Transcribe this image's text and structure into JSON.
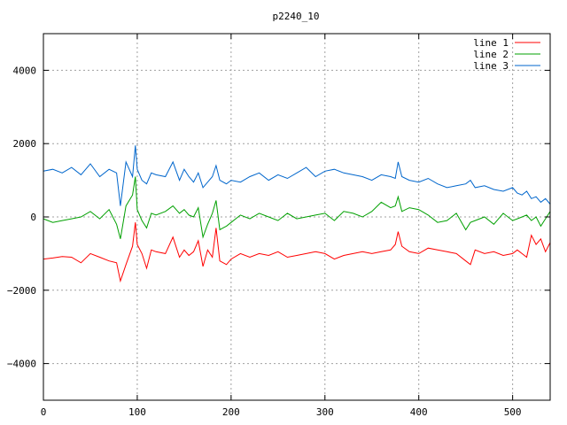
{
  "chart_data": {
    "type": "line",
    "title": "p2240_10",
    "xlabel": "",
    "ylabel": "",
    "xlim": [
      0,
      540
    ],
    "ylim": [
      -5000,
      5000
    ],
    "x_ticks": [
      0,
      100,
      200,
      300,
      400,
      500
    ],
    "y_ticks": [
      -4000,
      -2000,
      0,
      2000,
      4000
    ],
    "grid": true,
    "legend_position": "top-right",
    "series": [
      {
        "name": "line 1",
        "color": "#ff0000",
        "x": [
          0,
          10,
          20,
          30,
          40,
          50,
          60,
          70,
          78,
          82,
          88,
          95,
          98,
          100,
          105,
          110,
          115,
          120,
          130,
          138,
          145,
          150,
          155,
          160,
          165,
          170,
          175,
          180,
          184,
          188,
          195,
          200,
          210,
          220,
          230,
          240,
          250,
          260,
          270,
          280,
          290,
          300,
          310,
          320,
          330,
          340,
          350,
          360,
          370,
          375,
          378,
          382,
          390,
          400,
          410,
          420,
          430,
          440,
          450,
          455,
          460,
          470,
          480,
          490,
          500,
          505,
          510,
          515,
          520,
          525,
          530,
          535,
          540
        ],
        "values": [
          -1150,
          -1120,
          -1080,
          -1100,
          -1250,
          -1000,
          -1100,
          -1200,
          -1250,
          -1750,
          -1300,
          -800,
          -150,
          -750,
          -1000,
          -1400,
          -900,
          -950,
          -1000,
          -550,
          -1100,
          -900,
          -1050,
          -950,
          -650,
          -1350,
          -900,
          -1100,
          -300,
          -1200,
          -1300,
          -1150,
          -1000,
          -1100,
          -1000,
          -1050,
          -950,
          -1100,
          -1050,
          -1000,
          -950,
          -1000,
          -1150,
          -1050,
          -1000,
          -950,
          -1000,
          -950,
          -900,
          -750,
          -400,
          -800,
          -950,
          -1000,
          -850,
          -900,
          -950,
          -1000,
          -1200,
          -1300,
          -900,
          -1000,
          -950,
          -1050,
          -1000,
          -900,
          -1000,
          -1100,
          -500,
          -750,
          -600,
          -950,
          -700
        ]
      },
      {
        "name": "line 2",
        "color": "#00a000",
        "x": [
          0,
          10,
          20,
          30,
          40,
          50,
          60,
          70,
          78,
          82,
          88,
          95,
          98,
          100,
          105,
          110,
          115,
          120,
          130,
          138,
          145,
          150,
          155,
          160,
          165,
          170,
          175,
          180,
          184,
          188,
          195,
          200,
          210,
          220,
          230,
          240,
          250,
          260,
          270,
          280,
          290,
          300,
          310,
          320,
          330,
          340,
          350,
          360,
          370,
          375,
          378,
          382,
          390,
          400,
          410,
          420,
          430,
          440,
          450,
          455,
          460,
          470,
          480,
          490,
          500,
          505,
          510,
          515,
          520,
          525,
          530,
          535,
          540
        ],
        "values": [
          -50,
          -150,
          -100,
          -50,
          0,
          150,
          -50,
          200,
          -200,
          -600,
          300,
          600,
          1100,
          200,
          -100,
          -300,
          100,
          50,
          150,
          300,
          100,
          200,
          50,
          0,
          250,
          -550,
          -200,
          100,
          450,
          -350,
          -250,
          -150,
          50,
          -50,
          100,
          0,
          -100,
          100,
          -50,
          0,
          50,
          100,
          -100,
          150,
          100,
          0,
          150,
          400,
          250,
          300,
          550,
          150,
          250,
          200,
          50,
          -150,
          -100,
          100,
          -350,
          -150,
          -100,
          0,
          -200,
          100,
          -100,
          -50,
          0,
          50,
          -100,
          0,
          -250,
          -50,
          150
        ]
      },
      {
        "name": "line 3",
        "color": "#0066cc",
        "x": [
          0,
          10,
          20,
          30,
          40,
          50,
          60,
          70,
          78,
          82,
          88,
          95,
          98,
          100,
          105,
          110,
          115,
          120,
          130,
          138,
          145,
          150,
          155,
          160,
          165,
          170,
          175,
          180,
          184,
          188,
          195,
          200,
          210,
          220,
          230,
          240,
          250,
          260,
          270,
          280,
          290,
          300,
          310,
          320,
          330,
          340,
          350,
          360,
          370,
          375,
          378,
          382,
          390,
          400,
          410,
          420,
          430,
          440,
          450,
          455,
          460,
          470,
          480,
          490,
          500,
          505,
          510,
          515,
          520,
          525,
          530,
          535,
          540
        ],
        "values": [
          1250,
          1300,
          1200,
          1350,
          1150,
          1450,
          1100,
          1300,
          1200,
          300,
          1500,
          1100,
          1950,
          1300,
          1000,
          900,
          1200,
          1150,
          1100,
          1500,
          1000,
          1300,
          1100,
          950,
          1200,
          800,
          950,
          1100,
          1400,
          1000,
          900,
          1000,
          950,
          1100,
          1200,
          1000,
          1150,
          1050,
          1200,
          1350,
          1100,
          1250,
          1300,
          1200,
          1150,
          1100,
          1000,
          1150,
          1100,
          1050,
          1500,
          1100,
          1000,
          950,
          1050,
          900,
          800,
          850,
          900,
          1000,
          800,
          850,
          750,
          700,
          800,
          650,
          600,
          700,
          500,
          550,
          400,
          500,
          350
        ]
      }
    ]
  }
}
